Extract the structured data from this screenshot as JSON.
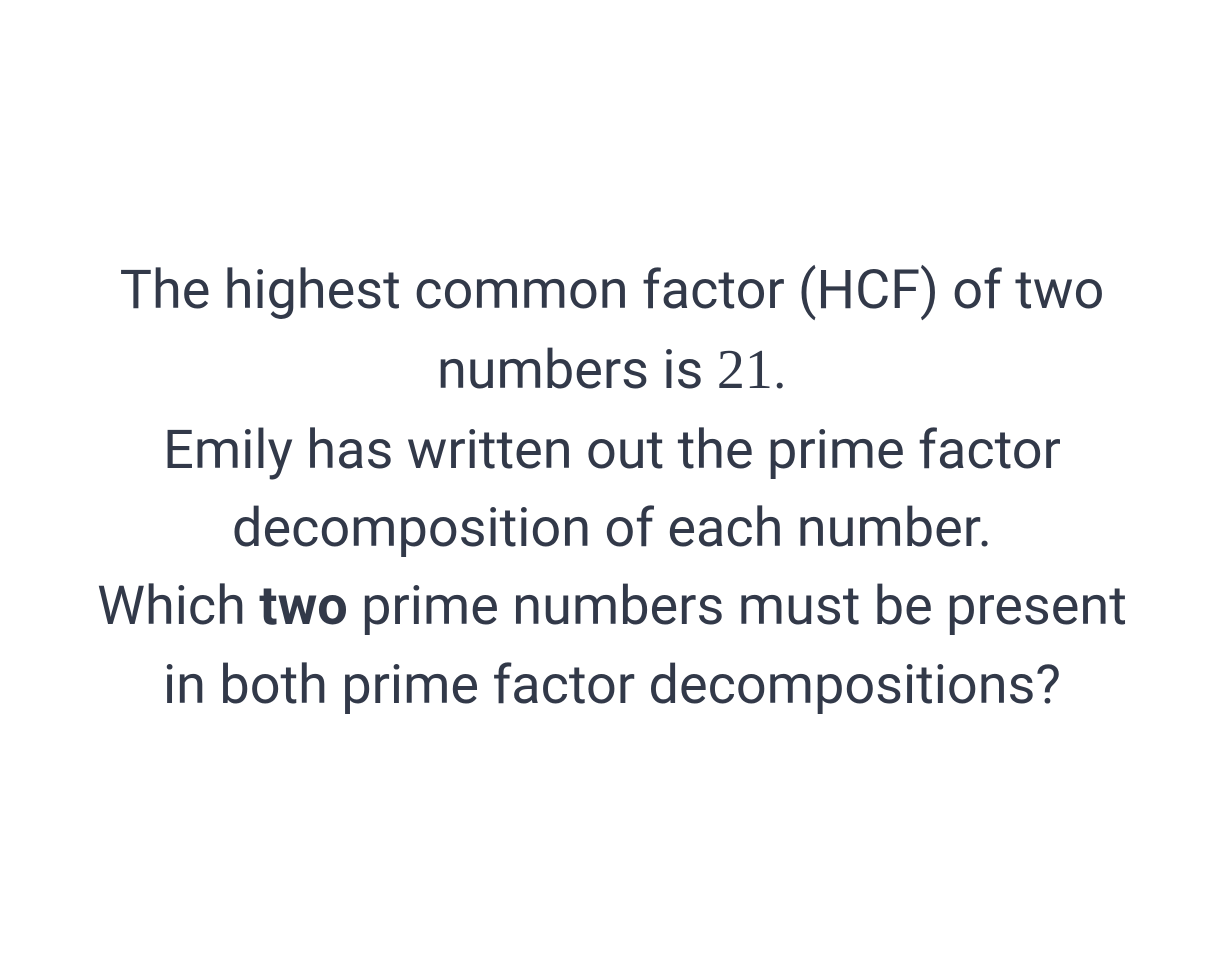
{
  "question": {
    "part1_before": "The highest common factor (HCF) of two numbers is ",
    "part1_number": "21",
    "part1_after": ".",
    "part2": "Emily has written out the prime factor decomposition of each number.",
    "part3_before": "Which ",
    "part3_bold": "two",
    "part3_after": " prime numbers must be present in both prime factor decompositions?"
  },
  "styling": {
    "text_color": "#323949",
    "background_color": "#ffffff",
    "font_size": 54,
    "math_font_size": 56,
    "line_height": 1.45,
    "max_width": 1140,
    "font_family": "-apple-system, BlinkMacSystemFont, 'Segoe UI', Roboto, Helvetica, Arial, sans-serif",
    "math_font_family": "'Times New Roman', Georgia, serif"
  }
}
